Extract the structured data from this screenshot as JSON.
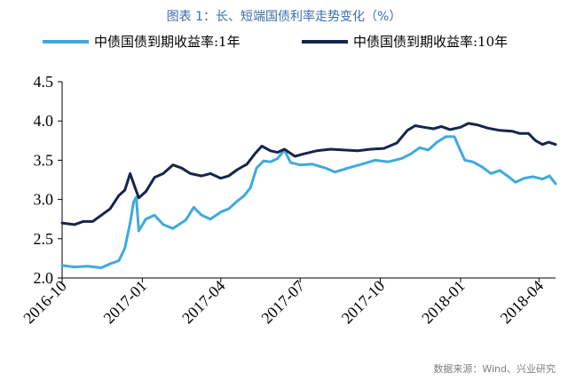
{
  "source_note": "数据来源：Wind、兴业研究",
  "chart_data": {
    "type": "line",
    "title": "图表 1：长、短端国债利率走势变化（%）",
    "xlabel": "",
    "ylabel": "",
    "ylim": [
      2.0,
      4.5
    ],
    "yticks": [
      "2.0",
      "2.5",
      "3.0",
      "3.5",
      "4.0",
      "4.5"
    ],
    "xlim": [
      "2016-10-01",
      "2018-04-20"
    ],
    "xticks": [
      {
        "date": "2016-10-01",
        "label": "2016-10"
      },
      {
        "date": "2017-01-01",
        "label": "2017-01"
      },
      {
        "date": "2017-04-01",
        "label": "2017-04"
      },
      {
        "date": "2017-07-01",
        "label": "2017-07"
      },
      {
        "date": "2017-10-01",
        "label": "2017-10"
      },
      {
        "date": "2018-01-01",
        "label": "2018-01"
      },
      {
        "date": "2018-04-01",
        "label": "2018-04"
      }
    ],
    "grid": false,
    "legend_position": "top",
    "series": [
      {
        "name": "中债国债到期收益率:1年",
        "color": "#3fa9de",
        "points": [
          [
            "2016-10-01",
            2.16
          ],
          [
            "2016-10-15",
            2.14
          ],
          [
            "2016-10-30",
            2.15
          ],
          [
            "2016-11-15",
            2.13
          ],
          [
            "2016-11-25",
            2.18
          ],
          [
            "2016-12-05",
            2.22
          ],
          [
            "2016-12-12",
            2.38
          ],
          [
            "2016-12-18",
            2.7
          ],
          [
            "2016-12-22",
            2.97
          ],
          [
            "2016-12-25",
            3.03
          ],
          [
            "2016-12-28",
            2.6
          ],
          [
            "2017-01-05",
            2.75
          ],
          [
            "2017-01-15",
            2.8
          ],
          [
            "2017-01-25",
            2.68
          ],
          [
            "2017-02-05",
            2.63
          ],
          [
            "2017-02-20",
            2.74
          ],
          [
            "2017-03-01",
            2.9
          ],
          [
            "2017-03-10",
            2.8
          ],
          [
            "2017-03-20",
            2.75
          ],
          [
            "2017-04-01",
            2.84
          ],
          [
            "2017-04-10",
            2.88
          ],
          [
            "2017-04-20",
            2.98
          ],
          [
            "2017-04-28",
            3.05
          ],
          [
            "2017-05-05",
            3.15
          ],
          [
            "2017-05-12",
            3.4
          ],
          [
            "2017-05-20",
            3.49
          ],
          [
            "2017-05-28",
            3.48
          ],
          [
            "2017-06-05",
            3.52
          ],
          [
            "2017-06-13",
            3.63
          ],
          [
            "2017-06-20",
            3.47
          ],
          [
            "2017-07-01",
            3.44
          ],
          [
            "2017-07-15",
            3.45
          ],
          [
            "2017-07-30",
            3.4
          ],
          [
            "2017-08-10",
            3.35
          ],
          [
            "2017-08-25",
            3.4
          ],
          [
            "2017-09-10",
            3.45
          ],
          [
            "2017-09-25",
            3.5
          ],
          [
            "2017-10-10",
            3.48
          ],
          [
            "2017-10-25",
            3.52
          ],
          [
            "2017-11-05",
            3.58
          ],
          [
            "2017-11-15",
            3.66
          ],
          [
            "2017-11-25",
            3.63
          ],
          [
            "2017-12-05",
            3.73
          ],
          [
            "2017-12-15",
            3.8
          ],
          [
            "2017-12-25",
            3.8
          ],
          [
            "2018-01-01",
            3.62
          ],
          [
            "2018-01-06",
            3.5
          ],
          [
            "2018-01-15",
            3.48
          ],
          [
            "2018-01-25",
            3.42
          ],
          [
            "2018-02-05",
            3.33
          ],
          [
            "2018-02-15",
            3.37
          ],
          [
            "2018-02-25",
            3.29
          ],
          [
            "2018-03-05",
            3.22
          ],
          [
            "2018-03-15",
            3.27
          ],
          [
            "2018-03-25",
            3.29
          ],
          [
            "2018-04-05",
            3.26
          ],
          [
            "2018-04-13",
            3.3
          ],
          [
            "2018-04-20",
            3.2
          ]
        ]
      },
      {
        "name": "中债国债到期收益率:10年",
        "color": "#15254d",
        "points": [
          [
            "2016-10-01",
            2.7
          ],
          [
            "2016-10-15",
            2.68
          ],
          [
            "2016-10-25",
            2.72
          ],
          [
            "2016-11-05",
            2.72
          ],
          [
            "2016-11-15",
            2.8
          ],
          [
            "2016-11-25",
            2.88
          ],
          [
            "2016-12-05",
            3.05
          ],
          [
            "2016-12-12",
            3.12
          ],
          [
            "2016-12-18",
            3.33
          ],
          [
            "2016-12-22",
            3.2
          ],
          [
            "2016-12-28",
            3.02
          ],
          [
            "2017-01-05",
            3.1
          ],
          [
            "2017-01-15",
            3.28
          ],
          [
            "2017-01-25",
            3.33
          ],
          [
            "2017-02-05",
            3.44
          ],
          [
            "2017-02-15",
            3.4
          ],
          [
            "2017-02-25",
            3.33
          ],
          [
            "2017-03-10",
            3.3
          ],
          [
            "2017-03-20",
            3.33
          ],
          [
            "2017-04-01",
            3.27
          ],
          [
            "2017-04-10",
            3.3
          ],
          [
            "2017-04-20",
            3.38
          ],
          [
            "2017-05-01",
            3.45
          ],
          [
            "2017-05-10",
            3.58
          ],
          [
            "2017-05-18",
            3.68
          ],
          [
            "2017-05-28",
            3.62
          ],
          [
            "2017-06-05",
            3.6
          ],
          [
            "2017-06-13",
            3.64
          ],
          [
            "2017-06-25",
            3.55
          ],
          [
            "2017-07-05",
            3.58
          ],
          [
            "2017-07-20",
            3.62
          ],
          [
            "2017-08-05",
            3.64
          ],
          [
            "2017-08-20",
            3.63
          ],
          [
            "2017-09-05",
            3.62
          ],
          [
            "2017-09-20",
            3.64
          ],
          [
            "2017-10-05",
            3.65
          ],
          [
            "2017-10-20",
            3.72
          ],
          [
            "2017-11-01",
            3.88
          ],
          [
            "2017-11-10",
            3.94
          ],
          [
            "2017-11-20",
            3.92
          ],
          [
            "2017-12-01",
            3.9
          ],
          [
            "2017-12-10",
            3.93
          ],
          [
            "2017-12-20",
            3.89
          ],
          [
            "2018-01-01",
            3.92
          ],
          [
            "2018-01-10",
            3.97
          ],
          [
            "2018-01-20",
            3.95
          ],
          [
            "2018-02-01",
            3.91
          ],
          [
            "2018-02-15",
            3.88
          ],
          [
            "2018-03-01",
            3.87
          ],
          [
            "2018-03-10",
            3.84
          ],
          [
            "2018-03-20",
            3.84
          ],
          [
            "2018-03-28",
            3.75
          ],
          [
            "2018-04-05",
            3.7
          ],
          [
            "2018-04-12",
            3.73
          ],
          [
            "2018-04-20",
            3.7
          ]
        ]
      }
    ]
  }
}
